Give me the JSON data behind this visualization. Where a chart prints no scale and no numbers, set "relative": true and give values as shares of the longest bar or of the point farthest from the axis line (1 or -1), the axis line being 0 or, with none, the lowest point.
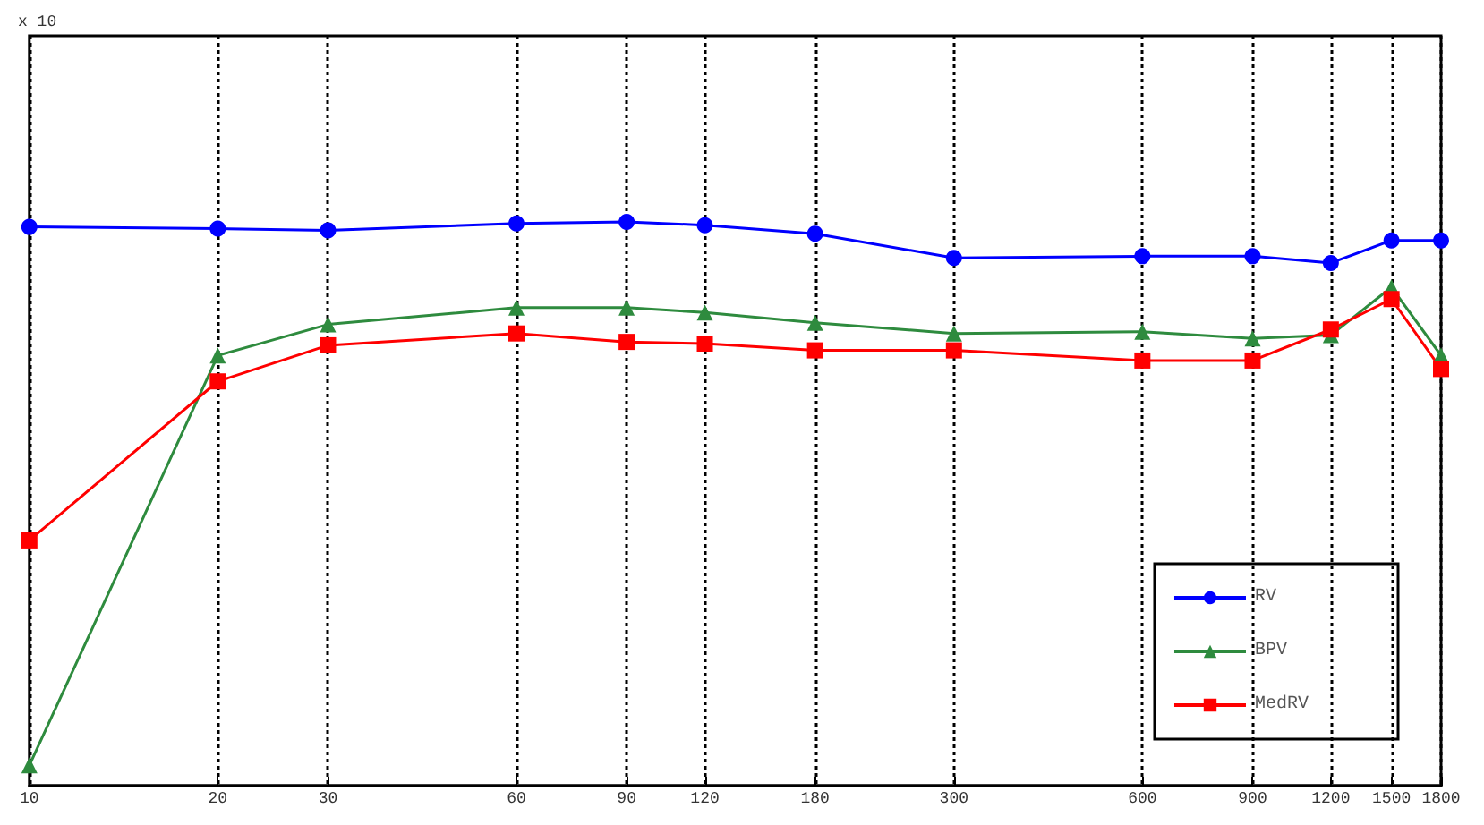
{
  "chart_data": {
    "type": "line",
    "relative": true,
    "log": "x",
    "x": [
      10,
      20,
      30,
      60,
      90,
      120,
      180,
      300,
      600,
      900,
      1200,
      1500,
      1800
    ],
    "xlim": [
      10,
      1800
    ],
    "xticks": [
      10,
      20,
      30,
      60,
      90,
      120,
      180,
      300,
      600,
      900,
      1200,
      1500,
      1800
    ],
    "series": [
      {
        "name": "RV",
        "color": "#0000ff",
        "marker": "circle",
        "values": [
          0.991,
          0.988,
          0.985,
          0.997,
          1,
          0.994,
          0.979,
          0.936,
          0.939,
          0.939,
          0.927,
          0.967,
          0.967
        ]
      },
      {
        "name": "BPV",
        "color": "#2e8b3e",
        "marker": "triangle",
        "values": [
          0.036,
          0.763,
          0.818,
          0.848,
          0.848,
          0.839,
          0.821,
          0.802,
          0.805,
          0.793,
          0.799,
          0.884,
          0.763
        ]
      },
      {
        "name": "MedRV",
        "color": "#ff0000",
        "marker": "square",
        "values": [
          0.435,
          0.717,
          0.781,
          0.802,
          0.787,
          0.784,
          0.772,
          0.772,
          0.754,
          0.754,
          0.809,
          0.863,
          0.739
        ]
      }
    ],
    "annotations": [
      "x 10"
    ],
    "grid": "x",
    "legend": "bottom right",
    "tick_labels": "x",
    "line_style": "solid"
  }
}
